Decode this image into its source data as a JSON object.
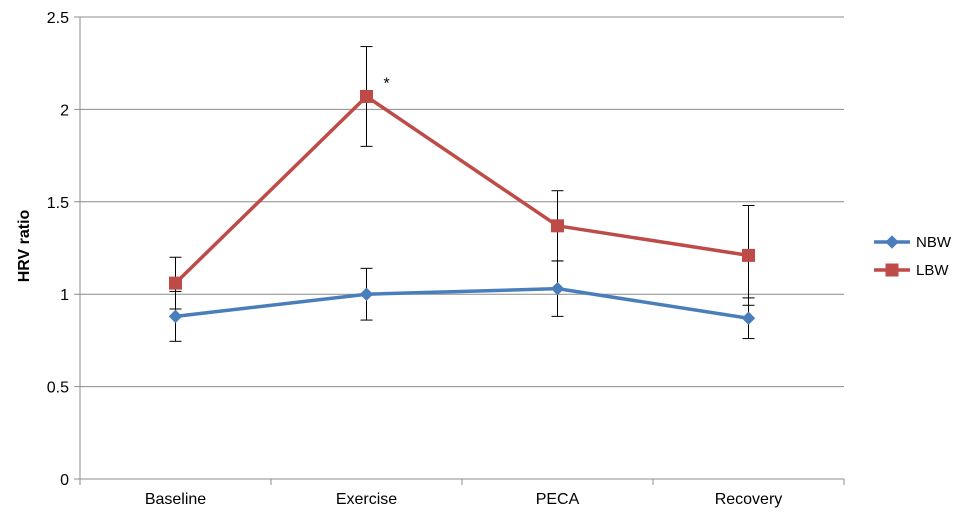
{
  "chart_data": {
    "type": "line",
    "ylabel": "HRV ratio",
    "xlabel": "",
    "categories": [
      "Baseline",
      "Exercise",
      "PECA",
      "Recovery"
    ],
    "ylim": [
      0,
      2.5
    ],
    "yticks": [
      0,
      0.5,
      1,
      1.5,
      2,
      2.5
    ],
    "ytick_labels": [
      "0",
      "0.5",
      "1",
      "1.5",
      "2",
      "2.5"
    ],
    "grid": "horizontal",
    "legend_position": "right",
    "series": [
      {
        "name": "NBW",
        "color": "#4a7ebb",
        "marker": "diamond",
        "values": [
          0.88,
          1.0,
          1.03,
          0.87
        ],
        "error": [
          0.135,
          0.14,
          0.15,
          0.11
        ]
      },
      {
        "name": "LBW",
        "color": "#be4b48",
        "marker": "square",
        "values": [
          1.06,
          2.07,
          1.37,
          1.21
        ],
        "error": [
          0.14,
          0.27,
          0.19,
          0.27
        ]
      }
    ],
    "annotations": [
      {
        "category": "Exercise",
        "series": "LBW",
        "text": "*"
      }
    ]
  }
}
